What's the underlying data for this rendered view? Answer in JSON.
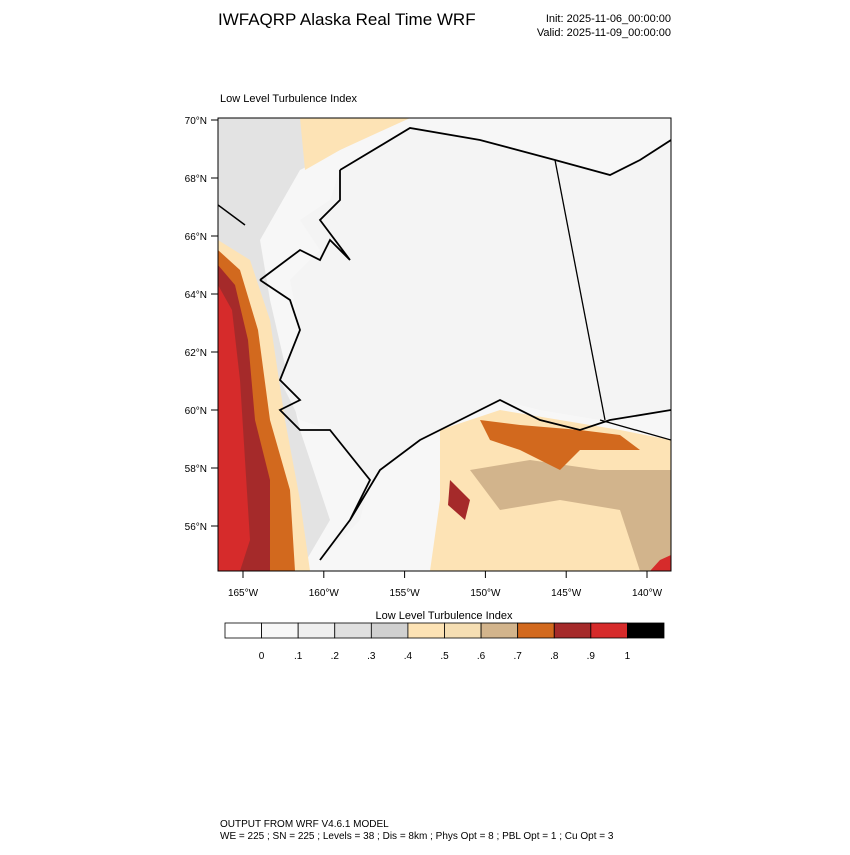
{
  "header": {
    "title": "IWFAQRP Alaska Real Time WRF",
    "init": "Init: 2025-11-06_00:00:00",
    "valid": "Valid: 2025-11-09_00:00:00"
  },
  "map": {
    "label": "Low Level Turbulence Index",
    "lat_ticks": [
      {
        "value": 70,
        "label": "70°N"
      },
      {
        "value": 68,
        "label": "68°N"
      },
      {
        "value": 66,
        "label": "66°N"
      },
      {
        "value": 64,
        "label": "64°N"
      },
      {
        "value": 62,
        "label": "62°N"
      },
      {
        "value": 60,
        "label": "60°N"
      },
      {
        "value": 58,
        "label": "58°N"
      },
      {
        "value": 56,
        "label": "56°N"
      }
    ],
    "lon_ticks": [
      {
        "value": -165,
        "label": "165°W"
      },
      {
        "value": -160,
        "label": "160°W"
      },
      {
        "value": -155,
        "label": "155°W"
      },
      {
        "value": -150,
        "label": "150°W"
      },
      {
        "value": -145,
        "label": "145°W"
      },
      {
        "value": -140,
        "label": "140°W"
      }
    ]
  },
  "colorbar": {
    "title": "Low Level Turbulence Index",
    "colors": [
      "#ffffff",
      "#f7f7f7",
      "#efefef",
      "#e0e0e0",
      "#d0d0d0",
      "#fde3b5",
      "#f5deb3",
      "#d2b48c",
      "#d2691e",
      "#a52a2a",
      "#d62b2b",
      "#000000"
    ],
    "ticks": [
      {
        "value": 0,
        "label": "0"
      },
      {
        "value": 0.1,
        "label": ".1"
      },
      {
        "value": 0.2,
        "label": ".2"
      },
      {
        "value": 0.3,
        "label": ".3"
      },
      {
        "value": 0.4,
        "label": ".4"
      },
      {
        "value": 0.5,
        "label": ".5"
      },
      {
        "value": 0.6,
        "label": ".6"
      },
      {
        "value": 0.7,
        "label": ".7"
      },
      {
        "value": 0.8,
        "label": ".8"
      },
      {
        "value": 0.9,
        "label": ".9"
      },
      {
        "value": 1,
        "label": "1"
      }
    ]
  },
  "footer": {
    "line1": "OUTPUT FROM WRF V4.6.1 MODEL",
    "line2": "WE = 225 ; SN = 225 ; Levels = 38 ; Dis = 8km ; Phys Opt = 8 ; PBL Opt = 1 ; Cu Opt = 3"
  }
}
